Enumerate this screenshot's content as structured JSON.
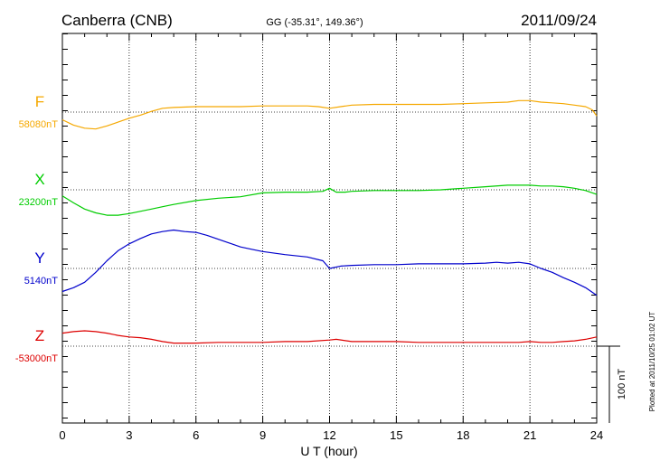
{
  "header": {
    "station": "Canberra (CNB)",
    "coords": "GG (-35.31°, 149.36°)",
    "date": "2011/09/24"
  },
  "footer": {
    "plotted_note": "Plotted at 2011/10/25 01:02 UT"
  },
  "chart_data": {
    "type": "line",
    "xlabel": "U T (hour)",
    "xlim": [
      0,
      24
    ],
    "xticks": [
      0,
      3,
      6,
      9,
      12,
      15,
      18,
      21,
      24
    ],
    "grid": true,
    "scale_bar": {
      "label": "100 nT",
      "value_nT": 100
    },
    "series": [
      {
        "name": "F",
        "baseline_label": "58080nT",
        "baseline_nT": 58080,
        "color": "#f5a800",
        "x": [
          0,
          0.5,
          1,
          1.5,
          2,
          2.5,
          3,
          3.5,
          4,
          4.5,
          5,
          6,
          7,
          8,
          9,
          10,
          11,
          11.5,
          12,
          12.5,
          13,
          14,
          15,
          16,
          17,
          18,
          19,
          20,
          20.5,
          21,
          21.5,
          22,
          22.5,
          23,
          23.5,
          23.8,
          24
        ],
        "y": [
          58070,
          58063,
          58059,
          58058,
          58062,
          58067,
          58072,
          58076,
          58081,
          58085,
          58086,
          58087,
          58087,
          58087,
          58088,
          58088,
          58088,
          58087,
          58085,
          58087,
          58089,
          58090,
          58090,
          58090,
          58090,
          58091,
          58092,
          58093,
          58095,
          58095,
          58093,
          58092,
          58091,
          58089,
          58087,
          58083,
          58075
        ]
      },
      {
        "name": "X",
        "baseline_label": "23200nT",
        "baseline_nT": 23200,
        "color": "#00cc00",
        "x": [
          0,
          0.5,
          1,
          1.5,
          2,
          2.5,
          3,
          3.5,
          4,
          4.5,
          5,
          6,
          7,
          8,
          9,
          10,
          11,
          11.7,
          12,
          12.3,
          12.7,
          13,
          14,
          15,
          16,
          17,
          18,
          19,
          20,
          21,
          21.5,
          22,
          22.5,
          23,
          23.5,
          24
        ],
        "y": [
          23192,
          23183,
          23175,
          23170,
          23167,
          23167,
          23169,
          23172,
          23175,
          23178,
          23181,
          23186,
          23189,
          23191,
          23196,
          23197,
          23197,
          23198,
          23202,
          23197,
          23197,
          23198,
          23199,
          23199,
          23199,
          23200,
          23202,
          23204,
          23206,
          23206,
          23205,
          23205,
          23204,
          23202,
          23199,
          23194
        ]
      },
      {
        "name": "Y",
        "baseline_label": "5140nT",
        "baseline_nT": 5140,
        "color": "#0000cc",
        "x": [
          0,
          0.5,
          1,
          1.5,
          2,
          2.5,
          3,
          3.5,
          4,
          4.5,
          5,
          5.5,
          6,
          6.5,
          7,
          7.5,
          8,
          8.5,
          9,
          10,
          11,
          11.7,
          12,
          12.5,
          13,
          14,
          15,
          16,
          17,
          18,
          19,
          19.5,
          20,
          20.5,
          21,
          21.5,
          22,
          22.5,
          23,
          23.5,
          24
        ],
        "y": [
          5110,
          5115,
          5122,
          5135,
          5150,
          5163,
          5172,
          5179,
          5185,
          5188,
          5190,
          5188,
          5187,
          5183,
          5178,
          5173,
          5168,
          5165,
          5162,
          5158,
          5155,
          5150,
          5140,
          5143,
          5144,
          5145,
          5145,
          5146,
          5146,
          5146,
          5147,
          5148,
          5147,
          5148,
          5146,
          5140,
          5135,
          5128,
          5122,
          5115,
          5105
        ]
      },
      {
        "name": "Z",
        "baseline_label": "-53000nT",
        "baseline_nT": -53000,
        "color": "#dd0000",
        "x": [
          0,
          0.5,
          1,
          1.5,
          2,
          2.5,
          3,
          3.5,
          4,
          4.5,
          5,
          6,
          7,
          8,
          9,
          10,
          11,
          12,
          12.3,
          13,
          14,
          15,
          16,
          17,
          18,
          19,
          20,
          20.5,
          21,
          21.5,
          22,
          22.5,
          23,
          23.5,
          24
        ],
        "y": [
          -52983,
          -52981,
          -52980,
          -52981,
          -52983,
          -52986,
          -52988,
          -52989,
          -52991,
          -52994,
          -52996,
          -52996,
          -52995,
          -52995,
          -52995,
          -52994,
          -52994,
          -52992,
          -52991,
          -52994,
          -52994,
          -52994,
          -52995,
          -52995,
          -52995,
          -52995,
          -52995,
          -52995,
          -52994,
          -52995,
          -52995,
          -52994,
          -52993,
          -52991,
          -52988
        ]
      }
    ]
  }
}
